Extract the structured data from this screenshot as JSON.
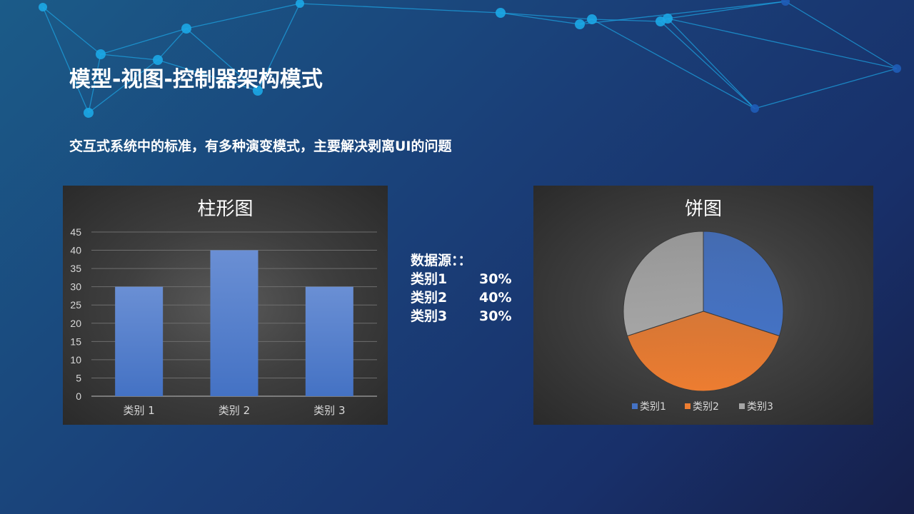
{
  "slide": {
    "title": "模型-视图-控制器架构模式",
    "subtitle": "交互式系统中的标准，有多种演变模式，主要解决剥离UI的问题"
  },
  "data_source": {
    "header": "数据源：：",
    "rows": [
      {
        "category": "类别1",
        "value": "30%"
      },
      {
        "category": "类别2",
        "value": "40%"
      },
      {
        "category": "类别3",
        "value": "30%"
      }
    ]
  },
  "colors": {
    "bar_fill": "#4472c4",
    "pie_series": [
      "#4472c4",
      "#ed7d31",
      "#a5a5a5"
    ],
    "network": "#1ca7e6"
  },
  "chart_data": [
    {
      "type": "bar",
      "title": "柱形图",
      "categories": [
        "类别 1",
        "类别 2",
        "类别 3"
      ],
      "values": [
        30,
        40,
        30
      ],
      "ylim": [
        0,
        45
      ],
      "yticks": [
        0,
        5,
        10,
        15,
        20,
        25,
        30,
        35,
        40,
        45
      ],
      "grid": true,
      "xlabel": "",
      "ylabel": ""
    },
    {
      "type": "pie",
      "title": "饼图",
      "categories": [
        "类别1",
        "类别2",
        "类别3"
      ],
      "values": [
        30,
        40,
        30
      ],
      "legend": "bottom"
    }
  ]
}
